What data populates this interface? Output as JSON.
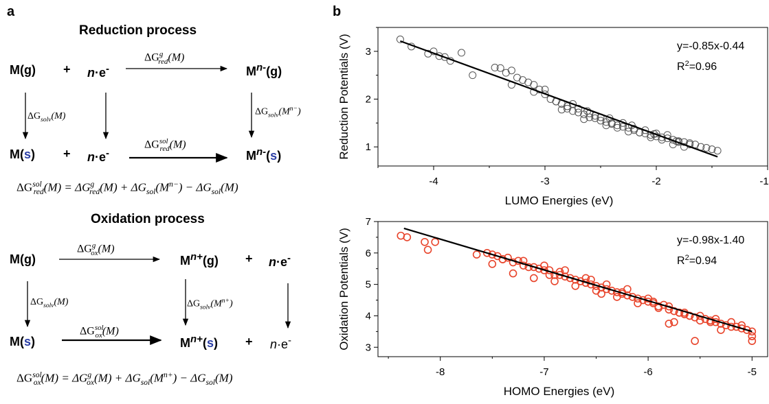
{
  "panel_a": {
    "label": "a",
    "reduction": {
      "title": "Reduction process",
      "M_g": "M(g)",
      "plus": "+",
      "n": "n",
      "e": "·e",
      "minus": "-",
      "Mn_minus_g": "M",
      "n_minus_sup": "n-",
      "g_suffix": "(g)",
      "M_s_prefix": "M(",
      "s": "s",
      "close": ")",
      "Mn_minus_s_prefix": "M",
      "s_open": "(",
      "dG": "ΔG",
      "red": "red",
      "solv": "solv",
      "sol": "sol",
      "g": "g",
      "M_arg": "(M)",
      "Mn_minus_arg": "(M",
      "n_minus_math": "n−",
      "paren": ")",
      "eq": "(M) = ΔG",
      "eq2": "(M) + ΔG",
      "eq3": ") − ΔG",
      "eq4": "(M)"
    },
    "oxidation": {
      "title": "Oxidation process",
      "M_g": "M(g)",
      "Mn_plus_g": "M",
      "n_plus_sup": "n+",
      "g_suffix": "(g)",
      "plus": "+",
      "n": "n",
      "e": "·e",
      "minus": "-",
      "M_s_prefix": "M(",
      "s": "s",
      "close": ")",
      "Mn_plus_s_prefix": "M",
      "s_open": "(",
      "dG": "ΔG",
      "ox": "ox",
      "solv": "solv",
      "sol": "sol",
      "g": "g",
      "M_arg": "(M)",
      "Mn_plus_arg": "(M",
      "n_plus_math": "n+",
      "paren": ")",
      "eq": "(M) = ΔG",
      "eq2": "(M) + ΔG",
      "eq3": ") − ΔG",
      "eq4": "(M)"
    }
  },
  "panel_b": {
    "label": "b"
  },
  "chart_data": [
    {
      "type": "scatter",
      "xlabel": "LUMO Energies (eV)",
      "ylabel": "Reduction Potentials (V)",
      "xlim": [
        -4.5,
        -1
      ],
      "ylim": [
        0.6,
        3.5
      ],
      "xticks": [
        -4,
        -3,
        -2,
        -1
      ],
      "xtick_labels": [
        "-4",
        "-3",
        "-2",
        "-1"
      ],
      "yticks": [
        1,
        2,
        3
      ],
      "ytick_labels": [
        "1",
        "2",
        "3"
      ],
      "marker_color": "#555555",
      "line_color": "#000000",
      "fit": {
        "slope": -0.85,
        "intercept": -0.44,
        "x_range": [
          -4.3,
          -1.45
        ]
      },
      "equation": "y=-0.85x-0.44",
      "r2_prefix": "R",
      "r2_sup": "2",
      "r2_value": "=0.96",
      "x": [
        -4.3,
        -4.2,
        -4.05,
        -4.0,
        -3.95,
        -3.9,
        -3.85,
        -3.75,
        -3.65,
        -3.45,
        -3.4,
        -3.35,
        -3.3,
        -3.25,
        -3.2,
        -3.15,
        -3.1,
        -3.05,
        -3.0,
        -2.95,
        -2.9,
        -2.85,
        -2.8,
        -2.75,
        -2.7,
        -2.65,
        -2.6,
        -2.55,
        -2.5,
        -2.45,
        -2.4,
        -2.35,
        -2.3,
        -2.25,
        -2.2,
        -2.15,
        -2.1,
        -2.05,
        -2.0,
        -1.95,
        -1.9,
        -1.85,
        -1.8,
        -1.75,
        -1.7,
        -1.65,
        -1.6,
        -1.55,
        -1.5,
        -1.45,
        -3.3,
        -3.1,
        -2.9,
        -2.7,
        -2.5,
        -2.3,
        -2.1,
        -1.9,
        -1.7,
        -3.0,
        -2.8,
        -2.6,
        -2.4,
        -2.2,
        -2.0,
        -1.8,
        -2.85,
        -2.65,
        -2.45,
        -2.25,
        -2.05,
        -1.85,
        -2.75,
        -2.55,
        -2.35,
        -2.15,
        -1.95,
        -1.75,
        -2.62,
        -2.42,
        -2.22,
        -2.02,
        -1.82
      ],
      "y": [
        3.25,
        3.1,
        2.95,
        3.0,
        2.9,
        2.88,
        2.8,
        2.97,
        2.5,
        2.66,
        2.65,
        2.55,
        2.6,
        2.45,
        2.4,
        2.35,
        2.3,
        2.2,
        2.1,
        2.0,
        1.95,
        1.9,
        1.8,
        1.75,
        1.72,
        1.68,
        1.62,
        1.6,
        1.55,
        1.52,
        1.5,
        1.45,
        1.42,
        1.4,
        1.35,
        1.3,
        1.28,
        1.25,
        1.22,
        1.2,
        1.18,
        1.15,
        1.12,
        1.1,
        1.08,
        1.05,
        1.0,
        0.98,
        0.95,
        0.92,
        2.3,
        2.15,
        1.95,
        1.8,
        1.62,
        1.5,
        1.35,
        1.25,
        1.05,
        2.2,
        1.85,
        1.7,
        1.48,
        1.38,
        1.28,
        1.1,
        1.78,
        1.58,
        1.45,
        1.32,
        1.2,
        1.05,
        1.9,
        1.65,
        1.4,
        1.3,
        1.15,
        1.0,
        1.75,
        1.6,
        1.45,
        1.27,
        1.12
      ]
    },
    {
      "type": "scatter",
      "xlabel": "HOMO Energies (eV)",
      "ylabel": "Oxidation Potentials (V)",
      "xlim": [
        -8.6,
        -4.85
      ],
      "ylim": [
        2.7,
        7.0
      ],
      "xticks": [
        -8,
        -7,
        -6,
        -5
      ],
      "xtick_labels": [
        "-8",
        "-7",
        "-6",
        "-5"
      ],
      "yticks": [
        3,
        4,
        5,
        6,
        7
      ],
      "ytick_labels": [
        "3",
        "4",
        "5",
        "6",
        "7"
      ],
      "marker_color": "#e8442b",
      "line_color": "#000000",
      "fit": {
        "slope": -0.98,
        "intercept": -1.4,
        "x_range": [
          -8.35,
          -5.0
        ]
      },
      "equation": "y=-0.98x-1.40",
      "r2_prefix": "R",
      "r2_sup": "2",
      "r2_value": "=0.94",
      "x": [
        -8.38,
        -8.32,
        -8.15,
        -8.12,
        -8.05,
        -7.65,
        -7.55,
        -7.5,
        -7.45,
        -7.4,
        -7.35,
        -7.3,
        -7.25,
        -7.2,
        -7.15,
        -7.1,
        -7.05,
        -7.0,
        -6.95,
        -6.9,
        -6.85,
        -6.8,
        -6.75,
        -6.7,
        -6.65,
        -6.6,
        -6.55,
        -6.5,
        -6.45,
        -6.4,
        -6.35,
        -6.3,
        -6.25,
        -6.2,
        -6.15,
        -6.1,
        -6.05,
        -6.0,
        -5.95,
        -5.9,
        -5.85,
        -5.8,
        -5.75,
        -5.7,
        -5.65,
        -5.6,
        -5.55,
        -5.5,
        -5.45,
        -5.4,
        -5.35,
        -5.3,
        -5.25,
        -5.2,
        -5.15,
        -5.1,
        -5.05,
        -5.0,
        -5.0,
        -5.0,
        -7.5,
        -7.3,
        -7.1,
        -6.9,
        -6.7,
        -6.5,
        -6.3,
        -6.1,
        -5.9,
        -5.7,
        -5.5,
        -5.3,
        -5.1,
        -7.2,
        -7.0,
        -6.8,
        -6.6,
        -6.4,
        -6.2,
        -6.0,
        -5.8,
        -5.6,
        -5.4,
        -5.2,
        -6.85,
        -6.55,
        -6.25,
        -5.95,
        -5.65,
        -5.35,
        -7.4,
        -6.95,
        -6.45,
        -5.55,
        -5.8,
        -5.75
      ],
      "y": [
        6.55,
        6.5,
        6.35,
        6.1,
        6.35,
        5.95,
        6.0,
        5.95,
        5.9,
        5.8,
        5.85,
        5.7,
        5.75,
        5.6,
        5.55,
        5.55,
        5.5,
        5.45,
        5.45,
        5.3,
        5.3,
        5.25,
        5.2,
        5.15,
        5.1,
        5.05,
        5.0,
        4.95,
        4.9,
        4.85,
        4.8,
        4.75,
        4.7,
        4.65,
        4.6,
        4.55,
        4.5,
        4.45,
        4.4,
        4.3,
        4.35,
        4.2,
        4.15,
        4.1,
        4.05,
        4.0,
        3.95,
        4.0,
        3.9,
        3.85,
        3.8,
        3.75,
        3.7,
        3.8,
        3.65,
        3.6,
        3.55,
        3.5,
        3.35,
        3.2,
        5.65,
        5.35,
        5.2,
        5.1,
        4.95,
        4.8,
        4.6,
        4.4,
        4.25,
        4.1,
        3.85,
        3.55,
        3.7,
        5.75,
        5.6,
        5.45,
        5.2,
        5.0,
        4.85,
        4.55,
        4.3,
        4.0,
        3.8,
        3.65,
        5.4,
        5.15,
        4.75,
        4.45,
        4.1,
        3.9,
        5.8,
        5.3,
        4.7,
        3.2,
        3.75,
        3.8
      ]
    }
  ]
}
